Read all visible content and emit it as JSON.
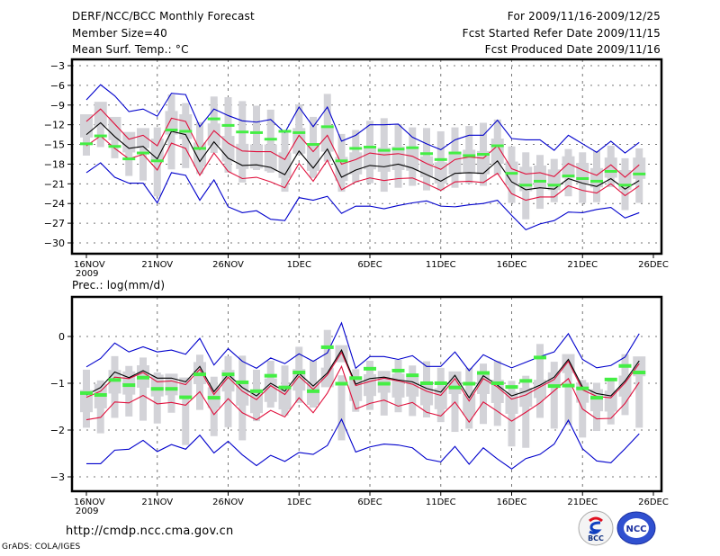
{
  "header": {
    "title": "DERF/NCC/BCC Monthly Forecast",
    "member_size": "Member Size=40",
    "variable_label": "Mean Surf. Temp.: °C",
    "period": "For 2009/11/16-2009/12/25",
    "fcst_started": "Fcst Started Refer Date 2009/11/15",
    "fcst_produced": "Fcst Produced Date 2009/11/16"
  },
  "footer": {
    "url": "http://cmdp.ncc.cma.gov.cn",
    "credit": "GrADS: COLA/IGES",
    "logo_left": "BCC",
    "logo_right": "NCC"
  },
  "colors": {
    "max_min": "#0000cc",
    "quartile": "#e0103c",
    "mean": "#000000",
    "median": "#44ee44",
    "box": "#d3d3d8",
    "grid": "#777777"
  },
  "chart_data": [
    {
      "type": "line",
      "title": "Mean Surf. Temp.: °C",
      "xlabel": "",
      "ylabel": "°C",
      "x_tick_labels": [
        "16NOV",
        "21NOV",
        "26NOV",
        "1DEC",
        "6DEC",
        "11DEC",
        "16DEC",
        "21DEC",
        "26DEC"
      ],
      "x_year_label": "2009",
      "xlim_days": [
        0,
        40
      ],
      "ylim": [
        -31.5,
        -2.5
      ],
      "y_ticks": [
        -3,
        -6,
        -9,
        -12,
        -15,
        -18,
        -21,
        -24,
        -27,
        -30
      ],
      "grid": true,
      "x_days": [
        0,
        1,
        2,
        3,
        4,
        5,
        6,
        7,
        8,
        9,
        10,
        11,
        12,
        13,
        14,
        15,
        16,
        17,
        18,
        19,
        20,
        21,
        22,
        23,
        24,
        25,
        26,
        27,
        28,
        29,
        30,
        31,
        32,
        33,
        34,
        35,
        36,
        37,
        38,
        39
      ],
      "series": [
        {
          "name": "max",
          "color": "blue",
          "values": [
            -8.2,
            -5.9,
            -7.6,
            -10.0,
            -9.6,
            -10.7,
            -7.2,
            -7.4,
            -12.3,
            -9.6,
            -10.6,
            -11.4,
            -11.6,
            -11.2,
            -13.2,
            -9.3,
            -12.3,
            -9.3,
            -14.5,
            -13.6,
            -12.0,
            -12.0,
            -11.9,
            -13.9,
            -14.9,
            -15.8,
            -14.3,
            -13.6,
            -13.6,
            -11.3,
            -14.1,
            -14.3,
            -14.3,
            -15.9,
            -13.6,
            -14.9,
            -16.2,
            -14.5,
            -16.3,
            -14.7
          ]
        },
        {
          "name": "upper",
          "color": "red",
          "values": [
            -11.5,
            -9.6,
            -11.9,
            -14.2,
            -13.6,
            -15.2,
            -11.0,
            -11.5,
            -15.8,
            -12.9,
            -14.8,
            -16.0,
            -16.1,
            -16.1,
            -17.3,
            -13.6,
            -16.1,
            -13.6,
            -18.0,
            -17.3,
            -16.3,
            -16.6,
            -16.4,
            -16.8,
            -17.9,
            -18.8,
            -17.3,
            -16.9,
            -17.1,
            -15.2,
            -18.7,
            -19.5,
            -19.3,
            -19.9,
            -17.9,
            -18.9,
            -19.7,
            -18.1,
            -20.0,
            -18.1
          ]
        },
        {
          "name": "mean",
          "color": "black",
          "values": [
            -13.5,
            -11.7,
            -13.8,
            -15.6,
            -15.3,
            -17.2,
            -13.0,
            -13.5,
            -17.6,
            -14.6,
            -17.1,
            -18.2,
            -18.1,
            -18.5,
            -19.6,
            -16.0,
            -18.6,
            -15.7,
            -20.0,
            -18.9,
            -18.2,
            -18.4,
            -18.0,
            -18.6,
            -19.6,
            -20.6,
            -19.4,
            -19.3,
            -19.4,
            -17.5,
            -20.7,
            -21.9,
            -21.6,
            -21.8,
            -20.2,
            -20.9,
            -21.4,
            -20.2,
            -21.8,
            -20.5
          ]
        },
        {
          "name": "lower",
          "color": "red",
          "values": [
            -15.2,
            -13.7,
            -15.6,
            -17.2,
            -16.5,
            -18.9,
            -14.8,
            -15.6,
            -19.7,
            -16.3,
            -19.1,
            -20.2,
            -20.0,
            -20.7,
            -21.6,
            -17.9,
            -20.6,
            -17.4,
            -21.9,
            -20.7,
            -20.1,
            -20.5,
            -20.2,
            -20.1,
            -21.0,
            -22.0,
            -20.7,
            -20.6,
            -20.8,
            -19.4,
            -22.5,
            -23.5,
            -23.0,
            -23.0,
            -21.3,
            -22.0,
            -22.4,
            -21.0,
            -22.8,
            -21.3
          ]
        },
        {
          "name": "min",
          "color": "blue",
          "values": [
            -19.3,
            -17.8,
            -20.0,
            -20.9,
            -20.9,
            -23.9,
            -19.3,
            -19.7,
            -23.5,
            -20.4,
            -24.5,
            -25.4,
            -25.1,
            -26.4,
            -26.6,
            -23.1,
            -23.5,
            -22.9,
            -25.5,
            -24.4,
            -24.4,
            -24.8,
            -24.3,
            -23.9,
            -23.6,
            -24.4,
            -24.5,
            -24.2,
            -24.0,
            -23.5,
            -25.8,
            -28.0,
            -27.1,
            -26.6,
            -25.3,
            -25.4,
            -24.9,
            -24.6,
            -26.2,
            -25.4
          ]
        },
        {
          "name": "median",
          "color": "green",
          "values": [
            -14.9,
            -13.7,
            -15.3,
            -17.2,
            -16.3,
            -17.5,
            -12.8,
            -13.0,
            -15.6,
            -11.1,
            -12.1,
            -13.1,
            -13.2,
            -14.2,
            -13.0,
            -13.2,
            -15.0,
            -12.3,
            -17.5,
            -15.6,
            -15.4,
            -15.9,
            -15.7,
            -15.5,
            -16.4,
            -17.3,
            -16.3,
            -16.7,
            -16.5,
            -15.2,
            -19.4,
            -21.2,
            -20.6,
            -21.2,
            -19.8,
            -20.2,
            -20.6,
            -19.1,
            -21.2,
            -19.5
          ]
        }
      ],
      "box_ranges": [
        [
          -16.7,
          -13.4
        ],
        [
          -15.4,
          -11.0
        ],
        [
          -17.1,
          -13.7
        ],
        [
          -19.8,
          -14.7
        ],
        [
          -20.5,
          -13.2
        ],
        [
          -22.9,
          -12.4
        ],
        [
          -18.8,
          -7.4
        ],
        [
          -18.6,
          -8.7
        ],
        [
          -19.5,
          -11.6
        ],
        [
          -16.3,
          -7.7
        ],
        [
          -19.3,
          -7.8
        ],
        [
          -20.8,
          -8.4
        ],
        [
          -18.9,
          -9.1
        ],
        [
          -19.3,
          -9.7
        ],
        [
          -22.2,
          -12.8
        ],
        [
          -16.6,
          -8.9
        ],
        [
          -20.1,
          -10.8
        ],
        [
          -17.6,
          -7.3
        ],
        [
          -22.2,
          -13.4
        ],
        [
          -20.8,
          -12.8
        ],
        [
          -20.9,
          -11.4
        ],
        [
          -22.2,
          -11.0
        ],
        [
          -21.6,
          -11.9
        ],
        [
          -21.3,
          -12.4
        ],
        [
          -22.0,
          -12.5
        ],
        [
          -22.0,
          -13.0
        ],
        [
          -21.6,
          -12.4
        ],
        [
          -21.0,
          -12.2
        ],
        [
          -21.3,
          -11.7
        ],
        [
          -19.6,
          -11.2
        ],
        [
          -23.9,
          -15.3
        ],
        [
          -26.4,
          -16.2
        ],
        [
          -24.8,
          -16.6
        ],
        [
          -23.8,
          -17.2
        ],
        [
          -22.9,
          -15.7
        ],
        [
          -23.9,
          -16.2
        ],
        [
          -23.8,
          -16.0
        ],
        [
          -21.5,
          -15.2
        ],
        [
          -25.0,
          -17.1
        ],
        [
          -23.9,
          -15.6
        ]
      ]
    },
    {
      "type": "line",
      "title": "Prec.: log(mm/d)",
      "xlabel": "",
      "ylabel": "log(mm/d)",
      "x_tick_labels": [
        "16NOV",
        "21NOV",
        "26NOV",
        "1DEC",
        "6DEC",
        "11DEC",
        "16DEC",
        "21DEC",
        "26DEC"
      ],
      "x_year_label": "2009",
      "xlim_days": [
        0,
        40
      ],
      "ylim": [
        -3.3,
        0.8
      ],
      "y_ticks": [
        0,
        -1,
        -2,
        -3
      ],
      "grid": true,
      "x_days": [
        0,
        1,
        2,
        3,
        4,
        5,
        6,
        7,
        8,
        9,
        10,
        11,
        12,
        13,
        14,
        15,
        16,
        17,
        18,
        19,
        20,
        21,
        22,
        23,
        24,
        25,
        26,
        27,
        28,
        29,
        30,
        31,
        32,
        33,
        34,
        35,
        36,
        37,
        38,
        39
      ],
      "series": [
        {
          "name": "max",
          "color": "blue",
          "values": [
            -0.65,
            -0.47,
            -0.14,
            -0.33,
            -0.22,
            -0.33,
            -0.29,
            -0.38,
            -0.04,
            -0.61,
            -0.26,
            -0.53,
            -0.68,
            -0.46,
            -0.58,
            -0.37,
            -0.53,
            -0.35,
            0.29,
            -0.68,
            -0.43,
            -0.43,
            -0.49,
            -0.41,
            -0.64,
            -0.64,
            -0.33,
            -0.73,
            -0.39,
            -0.54,
            -0.67,
            -0.55,
            -0.43,
            -0.33,
            0.06,
            -0.49,
            -0.67,
            -0.62,
            -0.44,
            0.06
          ]
        },
        {
          "name": "upper",
          "color": "red",
          "values": [
            -1.3,
            -1.17,
            -0.87,
            -0.9,
            -0.77,
            -0.97,
            -0.95,
            -1.03,
            -0.7,
            -1.24,
            -0.87,
            -1.17,
            -1.35,
            -1.05,
            -1.24,
            -0.85,
            -1.13,
            -0.82,
            -0.34,
            -1.05,
            -0.96,
            -0.89,
            -0.95,
            -1.02,
            -1.17,
            -1.26,
            -0.9,
            -1.38,
            -0.9,
            -1.08,
            -1.34,
            -1.25,
            -1.08,
            -0.92,
            -0.53,
            -1.14,
            -1.28,
            -1.31,
            -0.99,
            -0.58
          ]
        },
        {
          "name": "mean",
          "color": "black",
          "values": [
            -1.25,
            -1.09,
            -0.76,
            -0.88,
            -0.73,
            -0.89,
            -0.89,
            -0.97,
            -0.64,
            -1.18,
            -0.81,
            -1.09,
            -1.27,
            -1.0,
            -1.17,
            -0.79,
            -1.06,
            -0.78,
            -0.29,
            -1.02,
            -0.9,
            -0.87,
            -0.93,
            -0.97,
            -1.11,
            -1.19,
            -0.83,
            -1.31,
            -0.84,
            -1.04,
            -1.27,
            -1.17,
            -1.04,
            -0.87,
            -0.49,
            -1.08,
            -1.22,
            -1.27,
            -0.95,
            -0.52
          ]
        },
        {
          "name": "lower",
          "color": "red",
          "values": [
            -1.78,
            -1.73,
            -1.4,
            -1.42,
            -1.26,
            -1.44,
            -1.41,
            -1.47,
            -1.18,
            -1.67,
            -1.33,
            -1.63,
            -1.78,
            -1.58,
            -1.72,
            -1.31,
            -1.63,
            -1.21,
            -0.64,
            -1.55,
            -1.43,
            -1.36,
            -1.49,
            -1.41,
            -1.62,
            -1.7,
            -1.4,
            -1.83,
            -1.4,
            -1.6,
            -1.81,
            -1.62,
            -1.42,
            -1.16,
            -0.9,
            -1.55,
            -1.76,
            -1.75,
            -1.43,
            -0.98
          ]
        },
        {
          "name": "min",
          "color": "blue",
          "values": [
            -2.72,
            -2.72,
            -2.43,
            -2.41,
            -2.22,
            -2.46,
            -2.31,
            -2.41,
            -2.11,
            -2.49,
            -2.24,
            -2.53,
            -2.76,
            -2.54,
            -2.67,
            -2.48,
            -2.52,
            -2.33,
            -1.77,
            -2.47,
            -2.36,
            -2.3,
            -2.32,
            -2.38,
            -2.62,
            -2.68,
            -2.35,
            -2.73,
            -2.38,
            -2.62,
            -2.83,
            -2.61,
            -2.52,
            -2.3,
            -1.79,
            -2.4,
            -2.66,
            -2.7,
            -2.4,
            -2.08
          ]
        },
        {
          "name": "median",
          "color": "green",
          "values": [
            -1.2,
            -1.24,
            -0.92,
            -1.03,
            -0.87,
            -1.11,
            -1.11,
            -1.29,
            -0.8,
            -1.3,
            -0.8,
            -0.97,
            -1.16,
            -0.83,
            -1.08,
            -0.76,
            -1.16,
            -0.22,
            -1.0,
            -0.88,
            -0.68,
            -1.0,
            -0.72,
            -0.82,
            -0.99,
            -0.99,
            -1.08,
            -1.0,
            -0.77,
            -0.99,
            -1.07,
            -0.94,
            -0.44,
            -1.05,
            -1.04,
            -1.1,
            -1.3,
            -0.91,
            -0.62,
            -0.76
          ]
        },
        {
          "name": "box_low_placeholder",
          "color": "none",
          "values": []
        }
      ],
      "box_ranges": [
        [
          -1.95,
          -0.71
        ],
        [
          -2.07,
          -0.94
        ],
        [
          -1.74,
          -0.42
        ],
        [
          -1.71,
          -0.63
        ],
        [
          -1.8,
          -0.45
        ],
        [
          -1.86,
          -0.77
        ],
        [
          -1.63,
          -0.87
        ],
        [
          -2.32,
          -0.92
        ],
        [
          -1.57,
          -0.39
        ],
        [
          -2.13,
          -0.86
        ],
        [
          -1.94,
          -0.42
        ],
        [
          -2.22,
          -0.41
        ],
        [
          -1.81,
          -0.71
        ],
        [
          -1.52,
          -0.52
        ],
        [
          -1.69,
          -0.62
        ],
        [
          -1.42,
          -0.22
        ],
        [
          -1.52,
          -0.51
        ],
        [
          -1.04,
          0.14
        ],
        [
          -2.22,
          -0.83
        ],
        [
          -1.61,
          -0.7
        ],
        [
          -1.57,
          -0.52
        ],
        [
          -1.69,
          -0.93
        ],
        [
          -1.62,
          -0.5
        ],
        [
          -1.7,
          -0.62
        ],
        [
          -1.73,
          -0.53
        ],
        [
          -1.83,
          -0.67
        ],
        [
          -2.04,
          -0.86
        ],
        [
          -1.97,
          -0.67
        ],
        [
          -1.87,
          -0.58
        ],
        [
          -1.91,
          -0.52
        ],
        [
          -2.35,
          -0.95
        ],
        [
          -2.38,
          -0.84
        ],
        [
          -1.74,
          -0.16
        ],
        [
          -1.97,
          -0.54
        ],
        [
          -1.89,
          -0.56
        ],
        [
          -2.16,
          -0.93
        ],
        [
          -2.02,
          -0.99
        ],
        [
          -1.88,
          -0.89
        ],
        [
          -1.68,
          -0.38
        ],
        [
          -1.95,
          -0.65
        ]
      ]
    }
  ]
}
